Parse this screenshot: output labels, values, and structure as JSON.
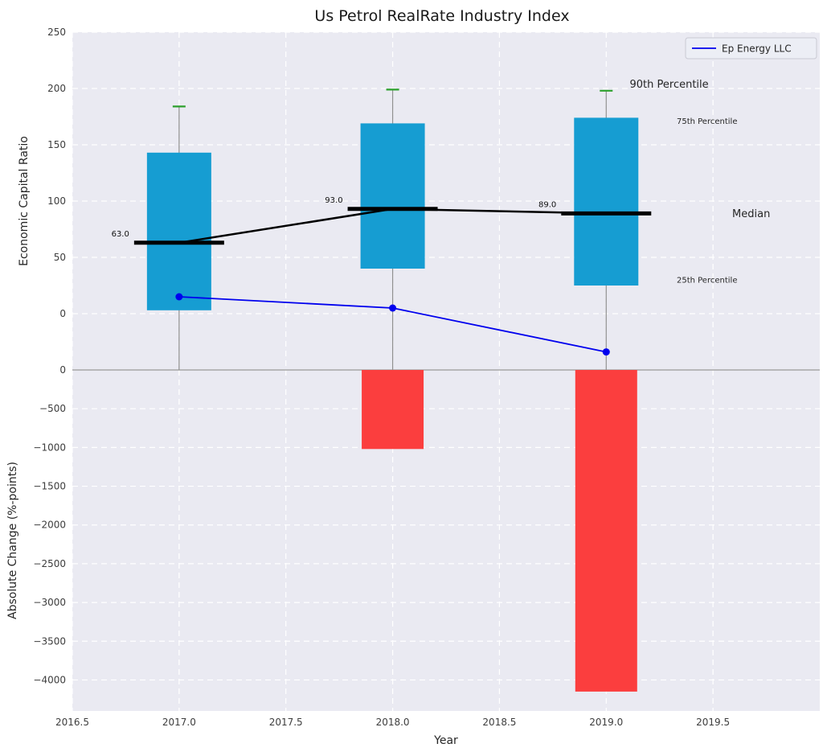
{
  "title": "Us Petrol RealRate Industry Index",
  "legend": {
    "label": "Ep Energy LLC"
  },
  "colors": {
    "axes_bg": "#eaeaf2",
    "grid": "#ffffff",
    "box": "#169dd2",
    "bar": "#fb3e3e",
    "cap": "#2ca02c",
    "whisker": "#909090",
    "median": "#000000",
    "company": "#0000ee",
    "divider": "#a6a6a6",
    "annotation_cyan": "#2aa6c9"
  },
  "chart_data": {
    "type": "boxplot+line+bar",
    "x": [
      2017,
      2018,
      2019
    ],
    "xlim": [
      2016.5,
      2020.0
    ],
    "xlabel": "Year",
    "xticks": [
      2016.5,
      2017.0,
      2017.5,
      2018.0,
      2018.5,
      2019.0,
      2019.5
    ],
    "xticklabels": [
      "2016.5",
      "2017.0",
      "2017.5",
      "2018.0",
      "2018.5",
      "2019.0",
      "2019.5"
    ],
    "top": {
      "ylabel": "Economic Capital Ratio",
      "ylim": [
        -50,
        250
      ],
      "yticks": [
        250,
        200,
        150,
        100,
        50,
        0
      ],
      "yticklabels": [
        "250",
        "200",
        "150",
        "100",
        "50",
        "0"
      ],
      "boxes": [
        {
          "x": 2017,
          "p25": 3,
          "p75": 143,
          "median": 63,
          "p90": 184,
          "label": "63.0"
        },
        {
          "x": 2018,
          "p25": 40,
          "p75": 169,
          "median": 93,
          "p90": 199,
          "label": "93.0"
        },
        {
          "x": 2019,
          "p25": 25,
          "p75": 174,
          "median": 89,
          "p90": 198,
          "label": "89.0"
        }
      ],
      "median_series": [
        63,
        93,
        89
      ],
      "company_line": {
        "name": "Ep Energy LLC",
        "values": [
          15,
          5,
          -34
        ]
      },
      "annotations": [
        {
          "text": "90th Percentile",
          "x": 2019.11,
          "y": 204,
          "color": "#111111",
          "size": 13
        },
        {
          "text": "75th Percentile",
          "x": 2019.33,
          "y": 171,
          "color": "#2aa6c9",
          "size": 10
        },
        {
          "text": "Median",
          "x": 2019.59,
          "y": 89,
          "color": "#111111",
          "size": 13
        },
        {
          "text": "25th Percentile",
          "x": 2019.33,
          "y": 30,
          "color": "#2aa6c9",
          "size": 10
        }
      ]
    },
    "bottom": {
      "ylabel": "Absolute Change (%-points)",
      "ylim": [
        -4400,
        0
      ],
      "yticks": [
        0,
        -500,
        -1000,
        -1500,
        -2000,
        -2500,
        -3000,
        -3500,
        -4000
      ],
      "yticklabels": [
        "0",
        "−500",
        "−1000",
        "−1500",
        "−2000",
        "−2500",
        "−3000",
        "−3500",
        "−4000"
      ],
      "values": [
        0,
        -1020,
        -4150
      ]
    }
  }
}
